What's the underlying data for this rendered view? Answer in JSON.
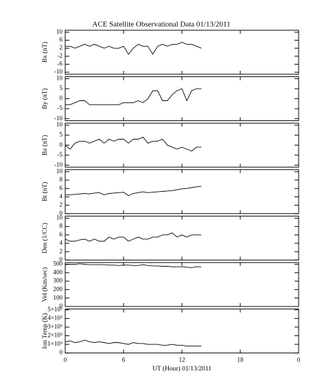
{
  "chart_data": {
    "type": "line",
    "title": "ACE Satellite Observational Data   01/13/2011",
    "xlabel": "UT (Hour)   01/13/2011",
    "xlim": [
      0,
      24
    ],
    "xticks": [
      0,
      6,
      12,
      18,
      {
        "value": 24,
        "label": "0"
      }
    ],
    "x": [
      0,
      0.5,
      1,
      1.5,
      2,
      2.5,
      3,
      3.5,
      4,
      4.5,
      5,
      5.5,
      6,
      6.5,
      7,
      7.5,
      8,
      8.5,
      9,
      9.5,
      10,
      10.5,
      11,
      11.5,
      12,
      12.5,
      13,
      13.5,
      14
    ],
    "panels": [
      {
        "ylabel": "Bx (nT)",
        "ylim": [
          -11,
          11
        ],
        "yticks": [
          10,
          6,
          2,
          -2,
          -6,
          -10
        ],
        "color": "#000000",
        "values": [
          3,
          3,
          2,
          3,
          4,
          3,
          4,
          3,
          2,
          3,
          2,
          2,
          3,
          -1,
          2,
          4,
          3,
          3,
          -1,
          3,
          4,
          3,
          4,
          4,
          5,
          4,
          4,
          3,
          2
        ]
      },
      {
        "ylabel": "By (nT)",
        "ylim": [
          -11,
          11
        ],
        "yticks": [
          10,
          5,
          0,
          -5,
          -10
        ],
        "color": "#000000",
        "values": [
          -3,
          -3,
          -2,
          -1,
          -1,
          -3,
          -3,
          -3,
          -3,
          -3,
          -3,
          -3,
          -2,
          -2,
          -2,
          -1,
          -2,
          0,
          4,
          4,
          -1,
          -1,
          2,
          4,
          5,
          -1,
          4,
          5,
          5
        ]
      },
      {
        "ylabel": "Bz (nT)",
        "ylim": [
          -11,
          11
        ],
        "yticks": [
          10,
          5,
          0,
          -5,
          -10
        ],
        "color": "#000000",
        "values": [
          0,
          -2,
          1,
          2,
          2,
          1,
          2,
          3,
          1,
          3,
          2,
          3,
          3,
          1,
          3,
          3,
          4,
          1,
          2,
          2,
          3,
          0,
          -1,
          -2,
          -1,
          -2,
          -3,
          -1,
          -1
        ]
      },
      {
        "ylabel": "Bt (nT)",
        "ylim": [
          0,
          10.5
        ],
        "yticks": [
          0,
          2,
          4,
          6,
          8,
          10
        ],
        "color": "#000000",
        "values": [
          4.5,
          4.5,
          4.6,
          4.7,
          4.8,
          4.7,
          4.9,
          5,
          4.5,
          4.8,
          4.9,
          5,
          5.1,
          4.3,
          4.8,
          5,
          5.2,
          5,
          5.1,
          5.2,
          5.3,
          5.4,
          5.5,
          5.7,
          5.9,
          6,
          6.2,
          6.4,
          6.5
        ]
      },
      {
        "ylabel": "Den (1/CC)",
        "ylim": [
          0,
          10.5
        ],
        "yticks": [
          0,
          2,
          4,
          6,
          8,
          10
        ],
        "color": "#000000",
        "values": [
          5,
          4.5,
          4.5,
          4.8,
          5,
          4.5,
          5,
          4.5,
          4.5,
          5.5,
          5,
          5.5,
          5.5,
          4.5,
          5,
          5.5,
          5,
          5,
          5.5,
          5.5,
          6,
          6,
          6.5,
          5.5,
          6,
          5.5,
          6,
          6,
          6
        ]
      },
      {
        "ylabel": "Vel (Km/sec)",
        "ylim": [
          0,
          520
        ],
        "yticks": [
          0,
          100,
          200,
          300,
          400,
          500
        ],
        "color": "#000000",
        "values": [
          495,
          500,
          500,
          505,
          500,
          495,
          495,
          495,
          495,
          490,
          490,
          485,
          490,
          490,
          485,
          485,
          495,
          485,
          480,
          480,
          475,
          475,
          470,
          470,
          470,
          465,
          460,
          470,
          470
        ]
      },
      {
        "ylabel": "Ion Temp (K)",
        "ylim": [
          0,
          510000
        ],
        "yticks": [
          0,
          {
            "value": 100000,
            "label": "1×10⁵"
          },
          {
            "value": 200000,
            "label": "2×10⁵"
          },
          {
            "value": 300000,
            "label": "3×10⁵"
          },
          {
            "value": 400000,
            "label": "4×10⁵"
          },
          {
            "value": 500000,
            "label": "5×10⁵"
          }
        ],
        "color": "#000000",
        "values": [
          130000,
          140000,
          120000,
          130000,
          150000,
          130000,
          120000,
          130000,
          120000,
          110000,
          120000,
          120000,
          110000,
          100000,
          120000,
          110000,
          110000,
          100000,
          100000,
          100000,
          90000,
          90000,
          100000,
          90000,
          90000,
          80000,
          80000,
          80000,
          80000
        ]
      }
    ]
  }
}
